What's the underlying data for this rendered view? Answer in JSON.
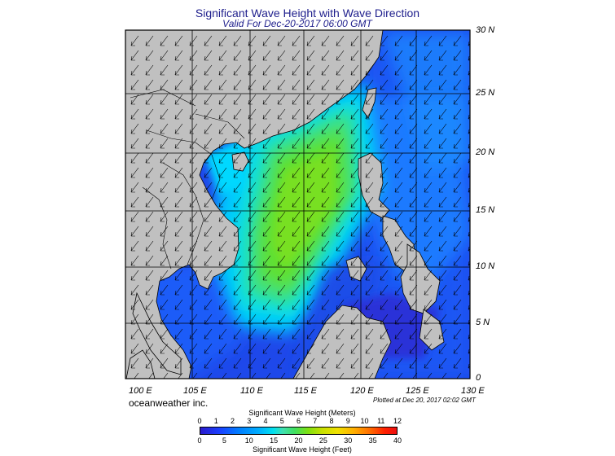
{
  "title": "Significant Wave Height with Wave Direction",
  "subtitle": "Valid For Dec-20-2017 06:00 GMT",
  "credit": "oceanweather inc.",
  "plotted": "Plotted at Dec 20, 2017 02:02 GMT",
  "lon_labels": [
    "100 E",
    "105 E",
    "110 E",
    "115 E",
    "120 E",
    "125 E",
    "130 E"
  ],
  "lat_labels": [
    "30 N",
    "25 N",
    "20 N",
    "15 N",
    "10 N",
    "5 N",
    "0"
  ],
  "colorbar": {
    "meters_title": "Significant Wave Height (Meters)",
    "feet_title": "Significant Wave Height (Feet)",
    "meters_ticks": [
      "0",
      "1",
      "2",
      "3",
      "4",
      "5",
      "6",
      "7",
      "8",
      "9",
      "10",
      "11",
      "12"
    ],
    "feet_ticks": [
      "0",
      "5",
      "10",
      "15",
      "20",
      "25",
      "30",
      "35",
      "40"
    ]
  },
  "colors": {
    "land": "#c0c0c0",
    "ocean_low": "#1a40ff",
    "ocean_mid": "#00d8f0",
    "ocean_high": "#70e020",
    "title": "#1e1e8c"
  }
}
